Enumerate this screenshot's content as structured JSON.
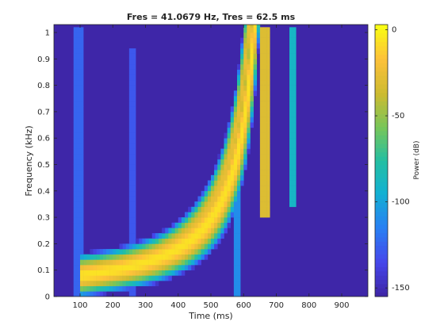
{
  "chart_data": {
    "type": "heatmap",
    "title": "Fres = 41.0679 Hz, Tres = 62.5 ms",
    "xlabel": "Time (ms)",
    "ylabel": "Frequency (kHz)",
    "xlim": [
      20,
      980
    ],
    "ylim": [
      0,
      1.03
    ],
    "x_ticks": [
      100,
      200,
      300,
      400,
      500,
      600,
      700,
      800,
      900
    ],
    "y_ticks": [
      0,
      0.1,
      0.2,
      0.3,
      0.4,
      0.5,
      0.6,
      0.7,
      0.8,
      0.9,
      1
    ],
    "colorbar": {
      "label": "Power (dB)",
      "range": [
        -155,
        3
      ],
      "ticks": [
        0,
        -50,
        -100,
        -150
      ],
      "colormap": "parula"
    },
    "grid": false,
    "background_level_db": -148,
    "features": [
      {
        "kind": "vertical_band",
        "time_range_ms": [
          85,
          105
        ],
        "freq_range_khz": [
          0.0,
          1.03
        ],
        "peak_db": -125
      },
      {
        "kind": "vertical_band",
        "time_range_ms": [
          248,
          270
        ],
        "freq_range_khz": [
          0.0,
          0.95
        ],
        "peak_db": -130
      },
      {
        "kind": "vertical_band",
        "time_range_ms": [
          570,
          590
        ],
        "freq_range_khz": [
          0.0,
          0.4
        ],
        "peak_db": -110
      },
      {
        "kind": "vertical_band",
        "time_range_ms": [
          655,
          680
        ],
        "freq_range_khz": [
          0.3,
          1.03
        ],
        "peak_db": -30
      },
      {
        "kind": "vertical_band",
        "time_range_ms": [
          740,
          760
        ],
        "freq_range_khz": [
          0.35,
          1.03
        ],
        "peak_db": -90
      },
      {
        "kind": "chirp",
        "description": "rising tone",
        "start_ms": 100,
        "end_ms": 700,
        "start_khz": 0.08,
        "peak_db": -5
      },
      {
        "kind": "chirp_harmonic",
        "start_ms": 300,
        "end_ms": 690,
        "start_khz": 0.15,
        "peak_db": -25
      }
    ]
  }
}
